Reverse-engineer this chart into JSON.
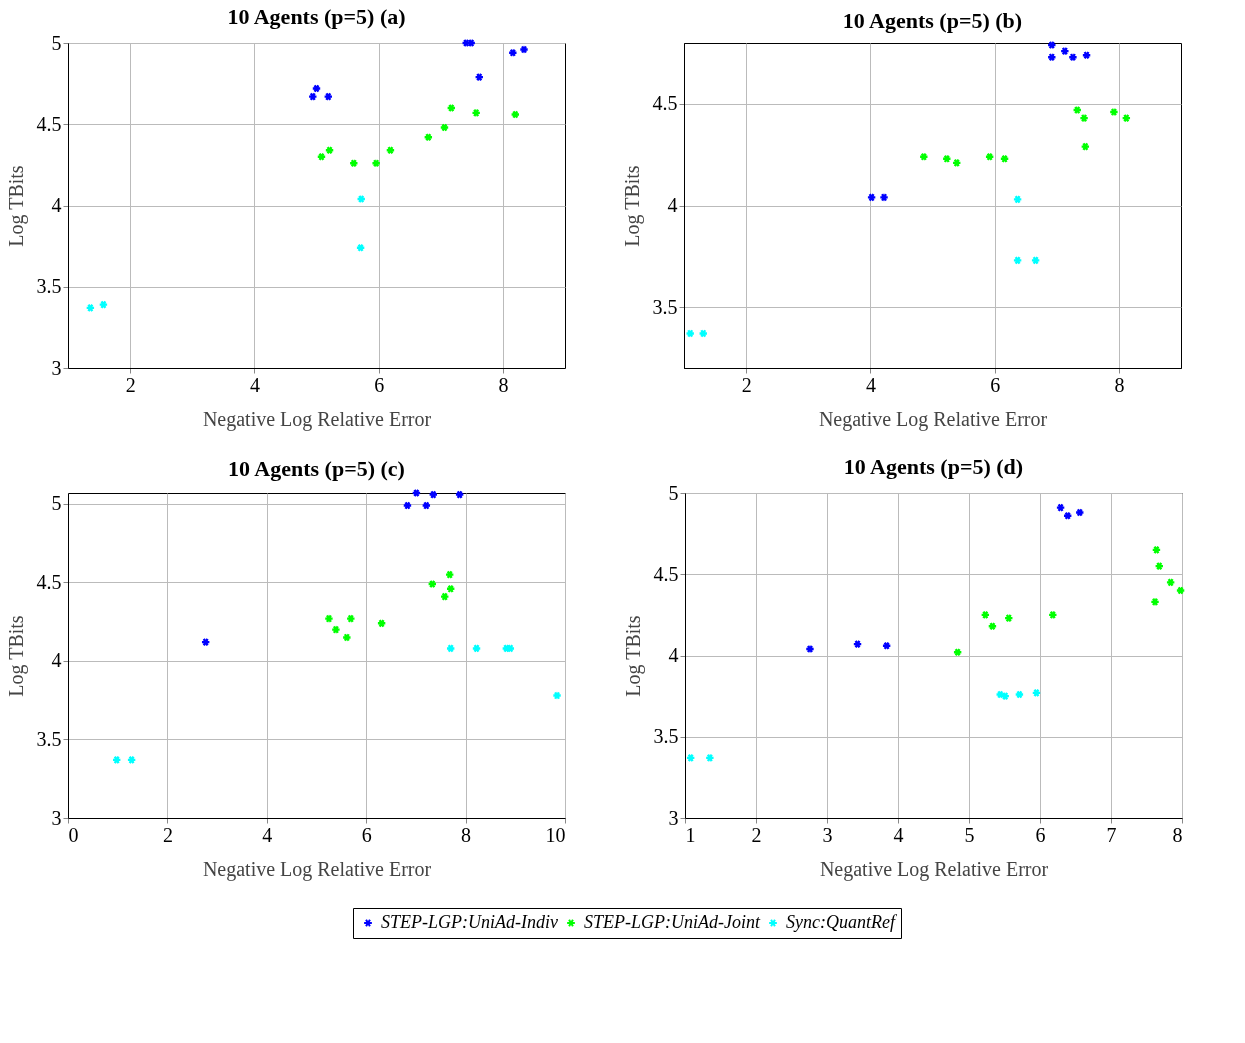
{
  "chart_data": [
    {
      "type": "scatter",
      "title": "10 Agents (p=5) (a)",
      "xlabel": "Negative Log Relative Error",
      "ylabel": "Log TBits",
      "xlim": [
        1,
        9
      ],
      "ylim": [
        3,
        5
      ],
      "xticks": [
        2,
        4,
        6,
        8
      ],
      "yticks": [
        3,
        3.5,
        4,
        4.5,
        5
      ],
      "grid": true,
      "marker": "cross",
      "legend": "bottom",
      "series": [
        {
          "name": "STEP-LGP:UniAd-Indiv",
          "color": "#0000ff",
          "x": [
            4.94,
            5.0,
            5.19,
            7.41,
            7.49,
            7.62,
            8.16,
            8.34
          ],
          "values": [
            4.67,
            4.72,
            4.67,
            5.0,
            5.0,
            4.79,
            4.94,
            4.96
          ]
        },
        {
          "name": "STEP-LGP:UniAd-Joint",
          "color": "#00ff00",
          "x": [
            5.08,
            5.21,
            5.6,
            5.96,
            6.19,
            6.8,
            7.06,
            7.17,
            7.57,
            8.2
          ],
          "values": [
            4.3,
            4.34,
            4.26,
            4.26,
            4.34,
            4.42,
            4.48,
            4.6,
            4.57,
            4.56
          ]
        },
        {
          "name": "Sync:QuantRef",
          "color": "#00ffff",
          "x": [
            1.36,
            1.57,
            5.72,
            5.71
          ],
          "values": [
            3.37,
            3.39,
            4.04,
            3.74
          ]
        }
      ]
    },
    {
      "type": "scatter",
      "title": "10 Agents (p=5) (b)",
      "xlabel": "Negative Log Relative Error",
      "ylabel": "Log TBits",
      "xlim": [
        1,
        9
      ],
      "ylim": [
        3.2,
        4.8
      ],
      "xticks": [
        2,
        4,
        6,
        8
      ],
      "yticks": [
        3.5,
        4,
        4.5
      ],
      "grid": true,
      "marker": "cross",
      "series": [
        {
          "name": "STEP-LGP:UniAd-Indiv",
          "color": "#0000ff",
          "x": [
            4.02,
            4.22,
            6.92,
            6.92,
            7.13,
            7.26,
            7.48
          ],
          "values": [
            4.04,
            4.04,
            4.79,
            4.73,
            4.76,
            4.73,
            4.74
          ]
        },
        {
          "name": "STEP-LGP:UniAd-Joint",
          "color": "#00ff00",
          "x": [
            4.86,
            5.23,
            5.39,
            5.92,
            6.16,
            7.33,
            7.44,
            7.46,
            7.92,
            8.12
          ],
          "values": [
            4.24,
            4.23,
            4.21,
            4.24,
            4.23,
            4.47,
            4.43,
            4.29,
            4.46,
            4.43
          ]
        },
        {
          "name": "Sync:QuantRef",
          "color": "#00ffff",
          "x": [
            1.1,
            1.31,
            6.37,
            6.37,
            6.66
          ],
          "values": [
            3.37,
            3.37,
            4.03,
            3.73,
            3.73
          ]
        }
      ]
    },
    {
      "type": "scatter",
      "title": "10 Agents (p=5) (c)",
      "xlabel": "Negative Log Relative Error",
      "ylabel": "Log TBits",
      "xlim": [
        0,
        10
      ],
      "ylim": [
        3,
        5.07
      ],
      "xticks": [
        0,
        2,
        4,
        6,
        8,
        10
      ],
      "yticks": [
        3,
        3.5,
        4,
        4.5,
        5
      ],
      "grid": true,
      "marker": "cross",
      "series": [
        {
          "name": "STEP-LGP:UniAd-Indiv",
          "color": "#0000ff",
          "x": [
            7.01,
            7.35,
            7.88,
            6.83,
            7.21,
            2.77
          ],
          "values": [
            5.07,
            5.06,
            5.06,
            4.99,
            4.99,
            4.12
          ]
        },
        {
          "name": "STEP-LGP:UniAd-Joint",
          "color": "#00ff00",
          "x": [
            5.25,
            5.69,
            5.39,
            5.61,
            6.31,
            7.33,
            7.68,
            7.7,
            7.58
          ],
          "values": [
            4.27,
            4.27,
            4.2,
            4.15,
            4.24,
            4.49,
            4.55,
            4.46,
            4.41
          ]
        },
        {
          "name": "Sync:QuantRef",
          "color": "#00ffff",
          "x": [
            0.98,
            1.28,
            7.7,
            8.22,
            8.82,
            8.9,
            9.84
          ],
          "values": [
            3.37,
            3.37,
            4.08,
            4.08,
            4.08,
            4.08,
            3.78
          ]
        }
      ]
    },
    {
      "type": "scatter",
      "title": "10 Agents (p=5) (d)",
      "xlabel": "Negative Log Relative Error",
      "ylabel": "Log TBits",
      "xlim": [
        1,
        8
      ],
      "ylim": [
        3,
        5
      ],
      "xticks": [
        1,
        2,
        3,
        4,
        5,
        6,
        7,
        8
      ],
      "yticks": [
        3,
        3.5,
        4,
        4.5,
        5
      ],
      "grid": true,
      "marker": "cross",
      "series": [
        {
          "name": "STEP-LGP:UniAd-Indiv",
          "color": "#0000ff",
          "x": [
            6.29,
            6.39,
            6.56,
            2.76,
            3.43,
            3.84
          ],
          "values": [
            4.91,
            4.86,
            4.88,
            4.04,
            4.07,
            4.06
          ]
        },
        {
          "name": "STEP-LGP:UniAd-Joint",
          "color": "#00ff00",
          "x": [
            4.84,
            5.23,
            5.33,
            5.56,
            6.18,
            7.64,
            7.68,
            7.84,
            7.98,
            7.62
          ],
          "values": [
            4.02,
            4.25,
            4.18,
            4.23,
            4.25,
            4.65,
            4.55,
            4.45,
            4.4,
            4.33
          ]
        },
        {
          "name": "Sync:QuantRef",
          "color": "#00ffff",
          "x": [
            1.08,
            1.35,
            5.44,
            5.51,
            5.71,
            5.95
          ],
          "values": [
            3.37,
            3.37,
            3.76,
            3.75,
            3.76,
            3.77
          ]
        }
      ]
    }
  ]
}
